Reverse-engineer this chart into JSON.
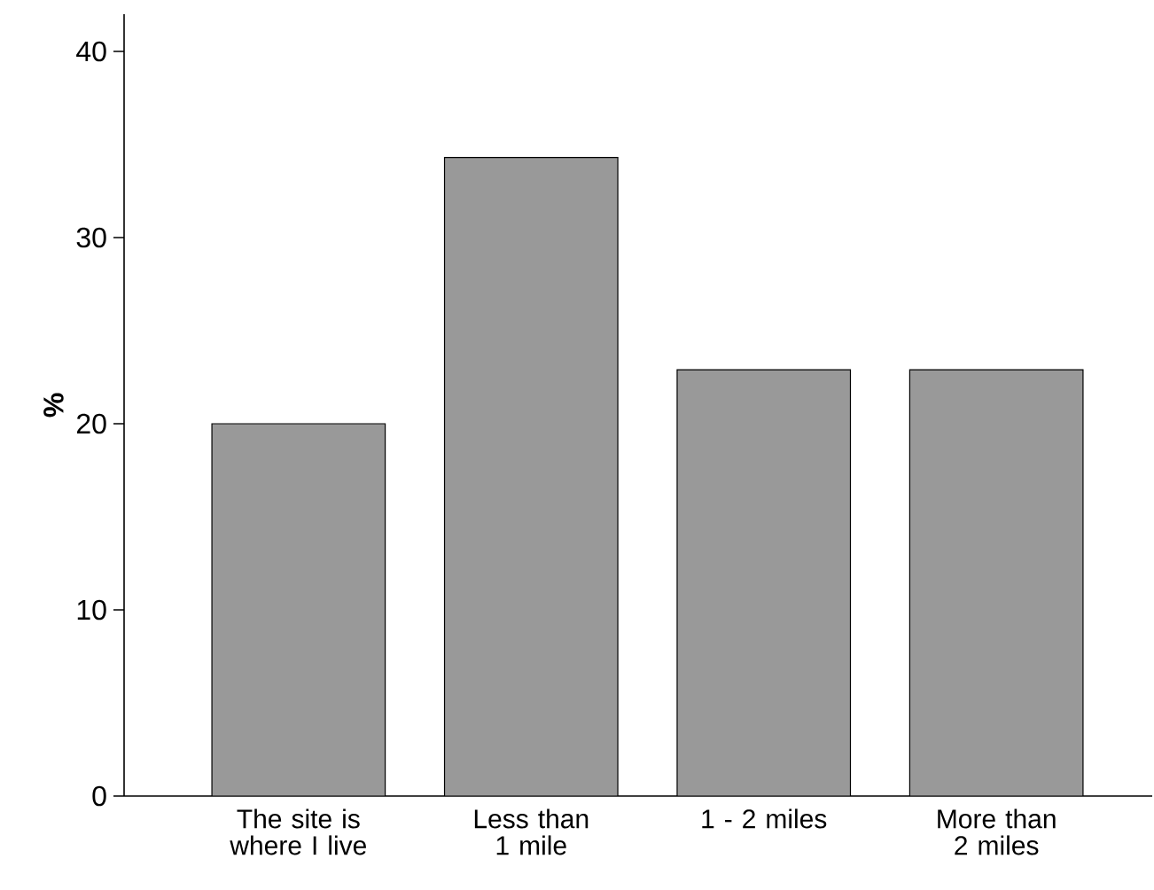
{
  "chart_data": {
    "type": "bar",
    "ylabel": "%",
    "categories": [
      "The site is where I live",
      "Less than 1 mile",
      "1 - 2 miles",
      "More than 2 miles"
    ],
    "values": [
      20,
      34.3,
      22.9,
      22.9
    ],
    "color": "#999999",
    "ylim": [
      0,
      42
    ],
    "yticks": [
      0,
      10,
      20,
      30,
      40
    ]
  }
}
